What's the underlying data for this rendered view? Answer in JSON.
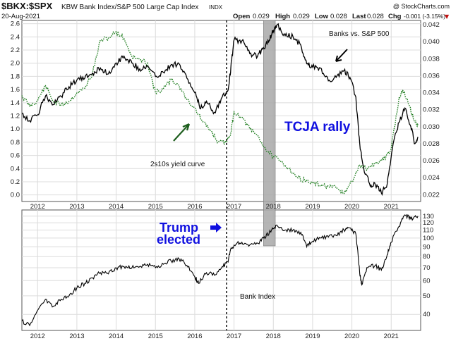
{
  "header": {
    "symbol": "$BKX:$SPX",
    "description": "KBW Bank Index/S&P 500 Large Cap Index",
    "indx": "INDX",
    "date": "20-Aug-2021",
    "open_label": "Open",
    "open_value": "0.029",
    "high_label": "High",
    "high_value": "0.029",
    "low_label": "Low",
    "low_value": "0.028",
    "last_label": "Last",
    "last_value": "0.028",
    "chg_label": "Chg",
    "chg_value": "-0.001 (-3.15%)",
    "chg_arrow": "▼",
    "watermark": "@ StockCharts.com"
  },
  "annotations": {
    "banks_vs_spx": "Banks vs. S&P 500",
    "yield_curve": "2s10s yield curve",
    "tcja": "TCJA rally",
    "trump_line1": "Trump",
    "trump_line2": "elected",
    "bank_index": "Bank Index"
  },
  "colors": {
    "ratio": "#000000",
    "yield_curve": "#1e7d1e",
    "highlight": "#a8a8a8",
    "annotation_blue": "#1010e0",
    "arrow_green": "#1e5e1e",
    "grid": "#dcdcdc"
  },
  "chart_data": [
    {
      "type": "line",
      "title": "$BKX:$SPX KBW Bank Index/S&P 500 Large Cap Index",
      "x_range": [
        2011.6,
        2021.75
      ],
      "x_ticks": [
        "2012",
        "2013",
        "2014",
        "2015",
        "2016",
        "2017",
        "2018",
        "2019",
        "2020",
        "2021"
      ],
      "left_axis": {
        "label": "2s10s yield curve",
        "ylim": [
          -0.1,
          2.65
        ],
        "ticks": [
          "0.0",
          "0.2",
          "0.4",
          "0.6",
          "0.8",
          "1.0",
          "1.2",
          "1.4",
          "1.6",
          "1.8",
          "2.0",
          "2.2",
          "2.4",
          "2.6"
        ]
      },
      "right_axis": {
        "label": "Banks vs. S&P 500",
        "ylim": [
          0.0212,
          0.0425
        ],
        "ticks": [
          "0.022",
          "0.024",
          "0.026",
          "0.028",
          "0.030",
          "0.032",
          "0.034",
          "0.036",
          "0.038",
          "0.040",
          "0.042"
        ]
      },
      "series": [
        {
          "name": "Banks vs. S&P 500",
          "axis": "right",
          "style": "solid",
          "points": [
            [
              2011.6,
              0.0316
            ],
            [
              2011.8,
              0.0307
            ],
            [
              2012.0,
              0.0314
            ],
            [
              2012.2,
              0.0336
            ],
            [
              2012.4,
              0.0326
            ],
            [
              2012.6,
              0.0336
            ],
            [
              2012.8,
              0.0347
            ],
            [
              2013.0,
              0.0355
            ],
            [
              2013.2,
              0.0357
            ],
            [
              2013.4,
              0.0363
            ],
            [
              2013.6,
              0.0369
            ],
            [
              2013.8,
              0.0362
            ],
            [
              2014.0,
              0.0375
            ],
            [
              2014.2,
              0.0383
            ],
            [
              2014.4,
              0.0375
            ],
            [
              2014.6,
              0.0368
            ],
            [
              2014.8,
              0.0371
            ],
            [
              2015.0,
              0.0359
            ],
            [
              2015.2,
              0.0364
            ],
            [
              2015.4,
              0.0373
            ],
            [
              2015.6,
              0.0374
            ],
            [
              2015.8,
              0.0357
            ],
            [
              2016.0,
              0.034
            ],
            [
              2016.15,
              0.0321
            ],
            [
              2016.3,
              0.033
            ],
            [
              2016.5,
              0.0317
            ],
            [
              2016.7,
              0.0335
            ],
            [
              2016.85,
              0.0343
            ],
            [
              2016.92,
              0.037
            ],
            [
              2017.0,
              0.0402
            ],
            [
              2017.2,
              0.0401
            ],
            [
              2017.4,
              0.0386
            ],
            [
              2017.6,
              0.0383
            ],
            [
              2017.75,
              0.0393
            ],
            [
              2017.9,
              0.0402
            ],
            [
              2018.0,
              0.0413
            ],
            [
              2018.1,
              0.042
            ],
            [
              2018.3,
              0.0407
            ],
            [
              2018.5,
              0.0406
            ],
            [
              2018.7,
              0.0396
            ],
            [
              2018.85,
              0.0374
            ],
            [
              2019.0,
              0.037
            ],
            [
              2019.2,
              0.0369
            ],
            [
              2019.4,
              0.0354
            ],
            [
              2019.6,
              0.0358
            ],
            [
              2019.8,
              0.0366
            ],
            [
              2019.95,
              0.0358
            ],
            [
              2020.1,
              0.0335
            ],
            [
              2020.2,
              0.028
            ],
            [
              2020.3,
              0.0251
            ],
            [
              2020.45,
              0.0233
            ],
            [
              2020.6,
              0.0231
            ],
            [
              2020.75,
              0.0222
            ],
            [
              2020.9,
              0.0233
            ],
            [
              2021.05,
              0.028
            ],
            [
              2021.2,
              0.0305
            ],
            [
              2021.35,
              0.0322
            ],
            [
              2021.5,
              0.03
            ],
            [
              2021.6,
              0.028
            ],
            [
              2021.68,
              0.0288
            ]
          ]
        },
        {
          "name": "2s10s yield curve",
          "axis": "left",
          "style": "dotted",
          "points": [
            [
              2011.6,
              1.51
            ],
            [
              2011.8,
              1.35
            ],
            [
              2012.0,
              1.43
            ],
            [
              2012.2,
              1.66
            ],
            [
              2012.4,
              1.42
            ],
            [
              2012.6,
              1.37
            ],
            [
              2012.8,
              1.42
            ],
            [
              2013.0,
              1.55
            ],
            [
              2013.2,
              1.62
            ],
            [
              2013.4,
              1.85
            ],
            [
              2013.6,
              2.35
            ],
            [
              2013.8,
              2.38
            ],
            [
              2014.0,
              2.48
            ],
            [
              2014.2,
              2.38
            ],
            [
              2014.4,
              2.1
            ],
            [
              2014.6,
              2.05
            ],
            [
              2014.8,
              2.0
            ],
            [
              2015.0,
              1.55
            ],
            [
              2015.2,
              1.61
            ],
            [
              2015.4,
              1.75
            ],
            [
              2015.6,
              1.66
            ],
            [
              2015.8,
              1.45
            ],
            [
              2016.0,
              1.32
            ],
            [
              2016.2,
              1.11
            ],
            [
              2016.4,
              0.98
            ],
            [
              2016.6,
              0.8
            ],
            [
              2016.8,
              0.8
            ],
            [
              2016.92,
              0.95
            ],
            [
              2017.0,
              1.26
            ],
            [
              2017.2,
              1.18
            ],
            [
              2017.4,
              1.0
            ],
            [
              2017.6,
              0.9
            ],
            [
              2017.8,
              0.7
            ],
            [
              2018.0,
              0.58
            ],
            [
              2018.2,
              0.5
            ],
            [
              2018.4,
              0.4
            ],
            [
              2018.6,
              0.27
            ],
            [
              2018.8,
              0.22
            ],
            [
              2019.0,
              0.18
            ],
            [
              2019.2,
              0.15
            ],
            [
              2019.4,
              0.13
            ],
            [
              2019.6,
              0.1
            ],
            [
              2019.8,
              0.02
            ],
            [
              2020.0,
              0.2
            ],
            [
              2020.2,
              0.45
            ],
            [
              2020.4,
              0.4
            ],
            [
              2020.6,
              0.48
            ],
            [
              2020.8,
              0.53
            ],
            [
              2021.0,
              0.7
            ],
            [
              2021.2,
              1.48
            ],
            [
              2021.3,
              1.58
            ],
            [
              2021.45,
              1.37
            ],
            [
              2021.6,
              1.12
            ],
            [
              2021.68,
              1.05
            ]
          ]
        }
      ],
      "highlight_band": {
        "label": "TCJA rally",
        "x_start": 2017.75,
        "x_end": 2018.05
      }
    },
    {
      "type": "line",
      "title": "Bank Index",
      "scale": "log",
      "x_range": [
        2011.6,
        2021.75
      ],
      "x_ticks": [
        "2012",
        "2013",
        "2014",
        "2015",
        "2016",
        "2017",
        "2018",
        "2019",
        "2020",
        "2021"
      ],
      "right_axis": {
        "ylim": [
          33,
          140
        ],
        "ticks": [
          "40",
          "50",
          "60",
          "70",
          "80",
          "90",
          "100",
          "110",
          "120",
          "130"
        ]
      },
      "series": [
        {
          "name": "Bank Index",
          "style": "solid",
          "points": [
            [
              2011.6,
              37
            ],
            [
              2011.8,
              35
            ],
            [
              2012.0,
              42
            ],
            [
              2012.2,
              48
            ],
            [
              2012.4,
              44
            ],
            [
              2012.6,
              48
            ],
            [
              2012.8,
              50
            ],
            [
              2013.0,
              55
            ],
            [
              2013.2,
              58
            ],
            [
              2013.4,
              62
            ],
            [
              2013.6,
              66
            ],
            [
              2013.8,
              65
            ],
            [
              2014.0,
              70
            ],
            [
              2014.2,
              71
            ],
            [
              2014.4,
              70
            ],
            [
              2014.6,
              71
            ],
            [
              2014.8,
              73
            ],
            [
              2015.0,
              70
            ],
            [
              2015.2,
              73
            ],
            [
              2015.4,
              76
            ],
            [
              2015.6,
              78
            ],
            [
              2015.8,
              72
            ],
            [
              2016.0,
              63
            ],
            [
              2016.1,
              58
            ],
            [
              2016.3,
              66
            ],
            [
              2016.5,
              64
            ],
            [
              2016.7,
              71
            ],
            [
              2016.85,
              75
            ],
            [
              2016.9,
              85
            ],
            [
              2017.0,
              92
            ],
            [
              2017.2,
              95
            ],
            [
              2017.4,
              92
            ],
            [
              2017.6,
              94
            ],
            [
              2017.75,
              100
            ],
            [
              2017.9,
              107
            ],
            [
              2018.0,
              112
            ],
            [
              2018.1,
              116
            ],
            [
              2018.3,
              110
            ],
            [
              2018.5,
              110
            ],
            [
              2018.7,
              107
            ],
            [
              2018.85,
              90
            ],
            [
              2019.0,
              96
            ],
            [
              2019.2,
              100
            ],
            [
              2019.4,
              101
            ],
            [
              2019.6,
              103
            ],
            [
              2019.8,
              110
            ],
            [
              2019.95,
              113
            ],
            [
              2020.1,
              105
            ],
            [
              2020.2,
              65
            ],
            [
              2020.25,
              57
            ],
            [
              2020.4,
              70
            ],
            [
              2020.6,
              72
            ],
            [
              2020.75,
              68
            ],
            [
              2020.9,
              82
            ],
            [
              2021.0,
              95
            ],
            [
              2021.2,
              115
            ],
            [
              2021.35,
              132
            ],
            [
              2021.45,
              128
            ],
            [
              2021.55,
              125
            ],
            [
              2021.68,
              130
            ]
          ]
        }
      ]
    }
  ]
}
